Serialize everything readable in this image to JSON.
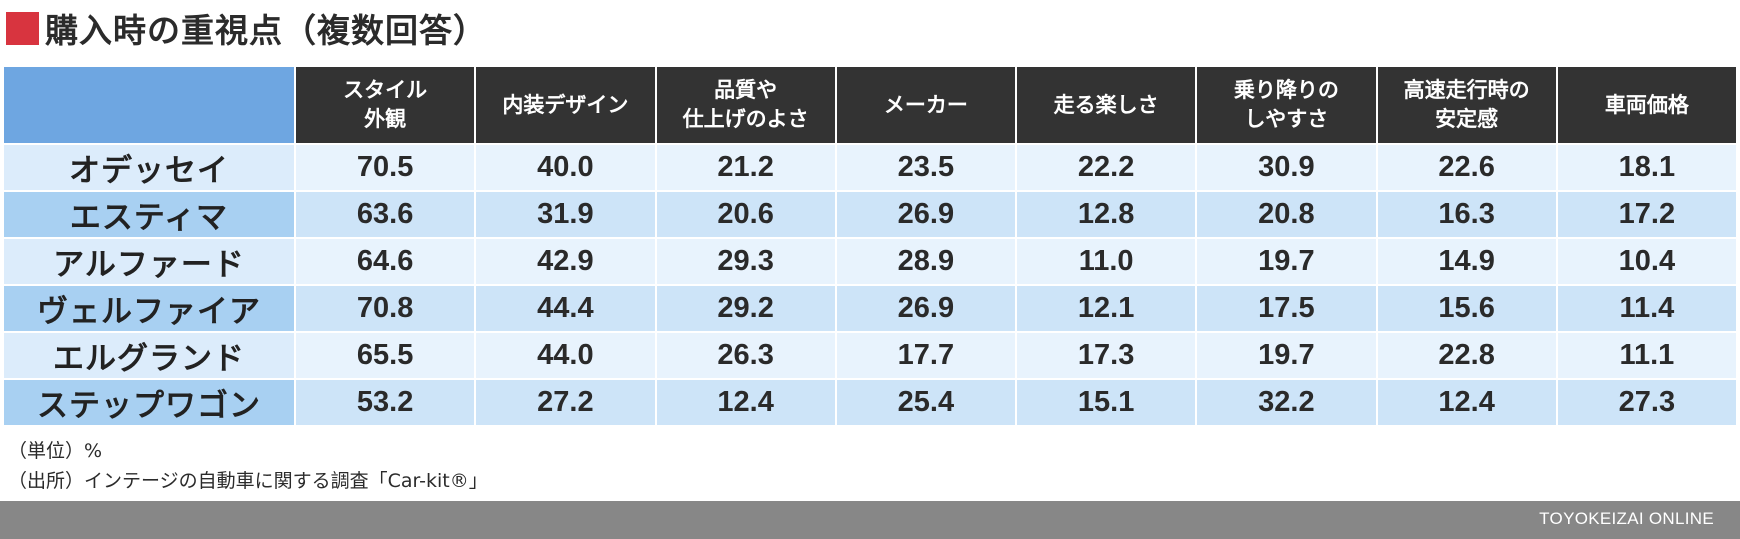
{
  "header": {
    "title": "購入時の重視点（複数回答）",
    "accent_color": "#d8343f"
  },
  "chart_data": {
    "type": "table",
    "title": "購入時の重視点（複数回答）",
    "columns": [
      "スタイル\n外観",
      "内装デザイン",
      "品質や\n仕上げのよさ",
      "メーカー",
      "走る楽しさ",
      "乗り降りの\nしやすさ",
      "高速走行時の\n安定感",
      "車両価格"
    ],
    "rows": [
      {
        "name": "オデッセイ",
        "values": [
          "70.5",
          "40.0",
          "21.2",
          "23.5",
          "22.2",
          "30.9",
          "22.6",
          "18.1"
        ]
      },
      {
        "name": "エスティマ",
        "values": [
          "63.6",
          "31.9",
          "20.6",
          "26.9",
          "12.8",
          "20.8",
          "16.3",
          "17.2"
        ]
      },
      {
        "name": "アルファード",
        "values": [
          "64.6",
          "42.9",
          "29.3",
          "28.9",
          "11.0",
          "19.7",
          "14.9",
          "10.4"
        ]
      },
      {
        "name": "ヴェルファイア",
        "values": [
          "70.8",
          "44.4",
          "29.2",
          "26.9",
          "12.1",
          "17.5",
          "15.6",
          "11.4"
        ]
      },
      {
        "name": "エルグランド",
        "values": [
          "65.5",
          "44.0",
          "26.3",
          "17.7",
          "17.3",
          "19.7",
          "22.8",
          "11.1"
        ]
      },
      {
        "name": "ステップワゴン",
        "values": [
          "53.2",
          "27.2",
          "12.4",
          "25.4",
          "15.1",
          "32.2",
          "12.4",
          "27.3"
        ]
      }
    ],
    "colors": {
      "header_bg": "#333333",
      "corner_bg": "#6ea6e1",
      "row_label_light": "#dcecfb",
      "row_label_dark": "#a8d0f2",
      "cell_light": "#e8f3fd",
      "cell_dark": "#cde4f8"
    }
  },
  "notes": {
    "unit": "（単位）%",
    "source": "（出所）インテージの自動車に関する調査「Car-kit®」"
  },
  "footer": {
    "brand": "TOYOKEIZAI ONLINE"
  }
}
